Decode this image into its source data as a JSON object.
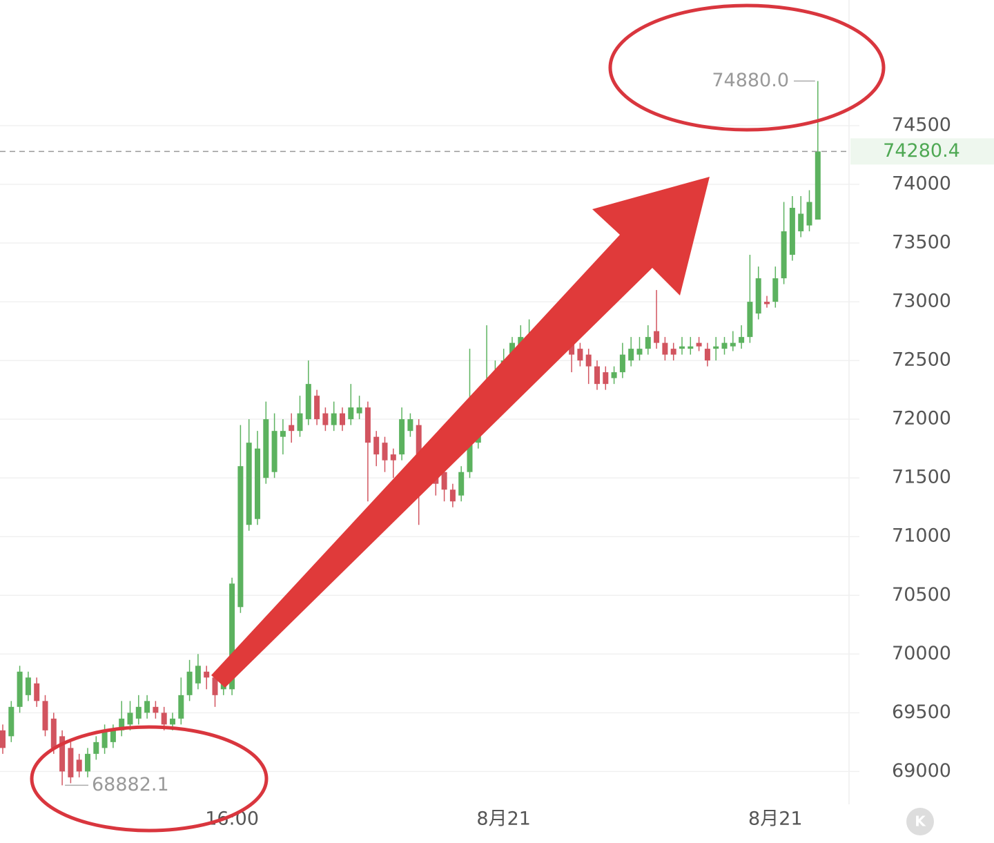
{
  "chart_data": {
    "type": "candlestick",
    "categories": [
      null,
      null,
      null,
      null,
      null,
      null,
      null,
      null,
      null,
      null,
      null,
      null,
      null,
      null,
      null,
      null,
      null,
      null,
      null,
      null,
      null,
      null,
      null,
      null,
      null,
      null,
      null,
      "16:00",
      null,
      null,
      null,
      null,
      null,
      null,
      null,
      null,
      null,
      null,
      null,
      null,
      null,
      null,
      null,
      null,
      null,
      null,
      null,
      null,
      null,
      null,
      null,
      null,
      null,
      null,
      null,
      null,
      null,
      null,
      null,
      "8月21",
      null,
      null,
      null,
      null,
      null,
      null,
      null,
      null,
      null,
      null,
      null,
      null,
      null,
      null,
      null,
      null,
      null,
      null,
      null,
      null,
      null,
      null,
      null,
      null,
      null,
      null,
      null,
      null,
      null,
      null,
      null,
      "8月21",
      null,
      null,
      null,
      null,
      null
    ],
    "open": [
      69350,
      69300,
      69550,
      69650,
      69750,
      69600,
      69450,
      69300,
      69200,
      69100,
      69000,
      69150,
      69200,
      69250,
      69350,
      69400,
      69450,
      69500,
      69550,
      69500,
      69400,
      69450,
      69650,
      69750,
      69850,
      69800,
      69700,
      69700,
      70400,
      71100,
      71150,
      71500,
      71550,
      71850,
      71950,
      71900,
      72000,
      72200,
      72050,
      71950,
      72050,
      72000,
      72050,
      72100,
      71850,
      71800,
      71700,
      71700,
      71900,
      71950,
      71700,
      71650,
      71550,
      71400,
      71350,
      71550,
      71800,
      72000,
      72200,
      72400,
      72500,
      72600,
      72650,
      72700,
      72700,
      72750,
      72700,
      72650,
      72600,
      72550,
      72450,
      72400,
      72350,
      72400,
      72500,
      72550,
      72600,
      72750,
      72650,
      72600,
      72600,
      72600,
      72650,
      72600,
      72600,
      72600,
      72620,
      72650,
      72700,
      72900,
      73000,
      73000,
      73200,
      73400,
      73600,
      73650,
      73700
    ],
    "high": [
      69400,
      69600,
      69900,
      69850,
      69800,
      69650,
      69500,
      69350,
      69250,
      69150,
      69200,
      69300,
      69400,
      69400,
      69600,
      69600,
      69650,
      69650,
      69600,
      69550,
      69500,
      69800,
      69950,
      70000,
      69900,
      69850,
      69800,
      70650,
      71950,
      72000,
      71900,
      72150,
      72050,
      72000,
      72050,
      72200,
      72500,
      72250,
      72100,
      72150,
      72100,
      72300,
      72200,
      72150,
      71900,
      71850,
      71750,
      72100,
      72050,
      72000,
      71750,
      71700,
      71600,
      71450,
      71600,
      72600,
      72100,
      72800,
      72500,
      72600,
      72700,
      72800,
      72850,
      72800,
      72800,
      72800,
      72750,
      72700,
      72650,
      72600,
      72500,
      72450,
      72450,
      72650,
      72700,
      72700,
      72800,
      73100,
      72700,
      72650,
      72700,
      72700,
      72700,
      72650,
      72700,
      72700,
      72750,
      72800,
      73400,
      73300,
      73050,
      73300,
      73850,
      73900,
      73900,
      73950,
      74880
    ],
    "low": [
      69150,
      69250,
      69500,
      69600,
      69550,
      69300,
      69150,
      68882.1,
      68900,
      68950,
      68950,
      69100,
      69150,
      69200,
      69300,
      69350,
      69400,
      69450,
      69450,
      69350,
      69350,
      69400,
      69600,
      69700,
      69700,
      69550,
      69650,
      69650,
      70350,
      71050,
      71100,
      71450,
      71500,
      71700,
      71800,
      71850,
      71950,
      71950,
      71900,
      71900,
      71900,
      71950,
      72000,
      71300,
      71600,
      71550,
      71500,
      71650,
      71850,
      71100,
      71450,
      71350,
      71300,
      71250,
      71300,
      71500,
      71750,
      71950,
      72150,
      72350,
      72450,
      72550,
      72600,
      72650,
      72650,
      72600,
      72550,
      72400,
      72450,
      72300,
      72250,
      72250,
      72300,
      72350,
      72450,
      72500,
      72550,
      72600,
      72500,
      72500,
      72550,
      72550,
      72580,
      72450,
      72500,
      72550,
      72580,
      72600,
      72650,
      72850,
      72950,
      72950,
      73150,
      73350,
      73550,
      73600,
      73700
    ],
    "close": [
      69200,
      69550,
      69850,
      69800,
      69600,
      69350,
      69200,
      69000,
      68950,
      69000,
      69150,
      69250,
      69350,
      69350,
      69450,
      69500,
      69550,
      69600,
      69500,
      69400,
      69450,
      69650,
      69850,
      69900,
      69800,
      69650,
      69750,
      70600,
      71600,
      71800,
      71750,
      72000,
      71900,
      71900,
      71900,
      72050,
      72300,
      72000,
      71950,
      72050,
      71950,
      72100,
      72100,
      71800,
      71700,
      71650,
      71650,
      72000,
      72000,
      71700,
      71550,
      71450,
      71400,
      71300,
      71550,
      72150,
      72000,
      72300,
      72400,
      72500,
      72650,
      72700,
      72700,
      72750,
      72750,
      72700,
      72650,
      72550,
      72500,
      72450,
      72300,
      72300,
      72400,
      72550,
      72600,
      72600,
      72700,
      72650,
      72550,
      72550,
      72620,
      72620,
      72620,
      72500,
      72620,
      72650,
      72650,
      72700,
      73000,
      73200,
      72980,
      73200,
      73600,
      73800,
      73750,
      73850,
      74280.4
    ],
    "up_color": "#5cb25f",
    "down_color": "#d2545f",
    "ylim": [
      68720,
      75570
    ],
    "yticks": [
      69000,
      69500,
      70000,
      70500,
      71000,
      71500,
      72000,
      72500,
      73000,
      73500,
      74000,
      74500
    ],
    "grid": true,
    "high_label": {
      "value": 74880,
      "label": "74880.0"
    },
    "low_label": 68882.1,
    "last_price": 74280.4
  }
}
